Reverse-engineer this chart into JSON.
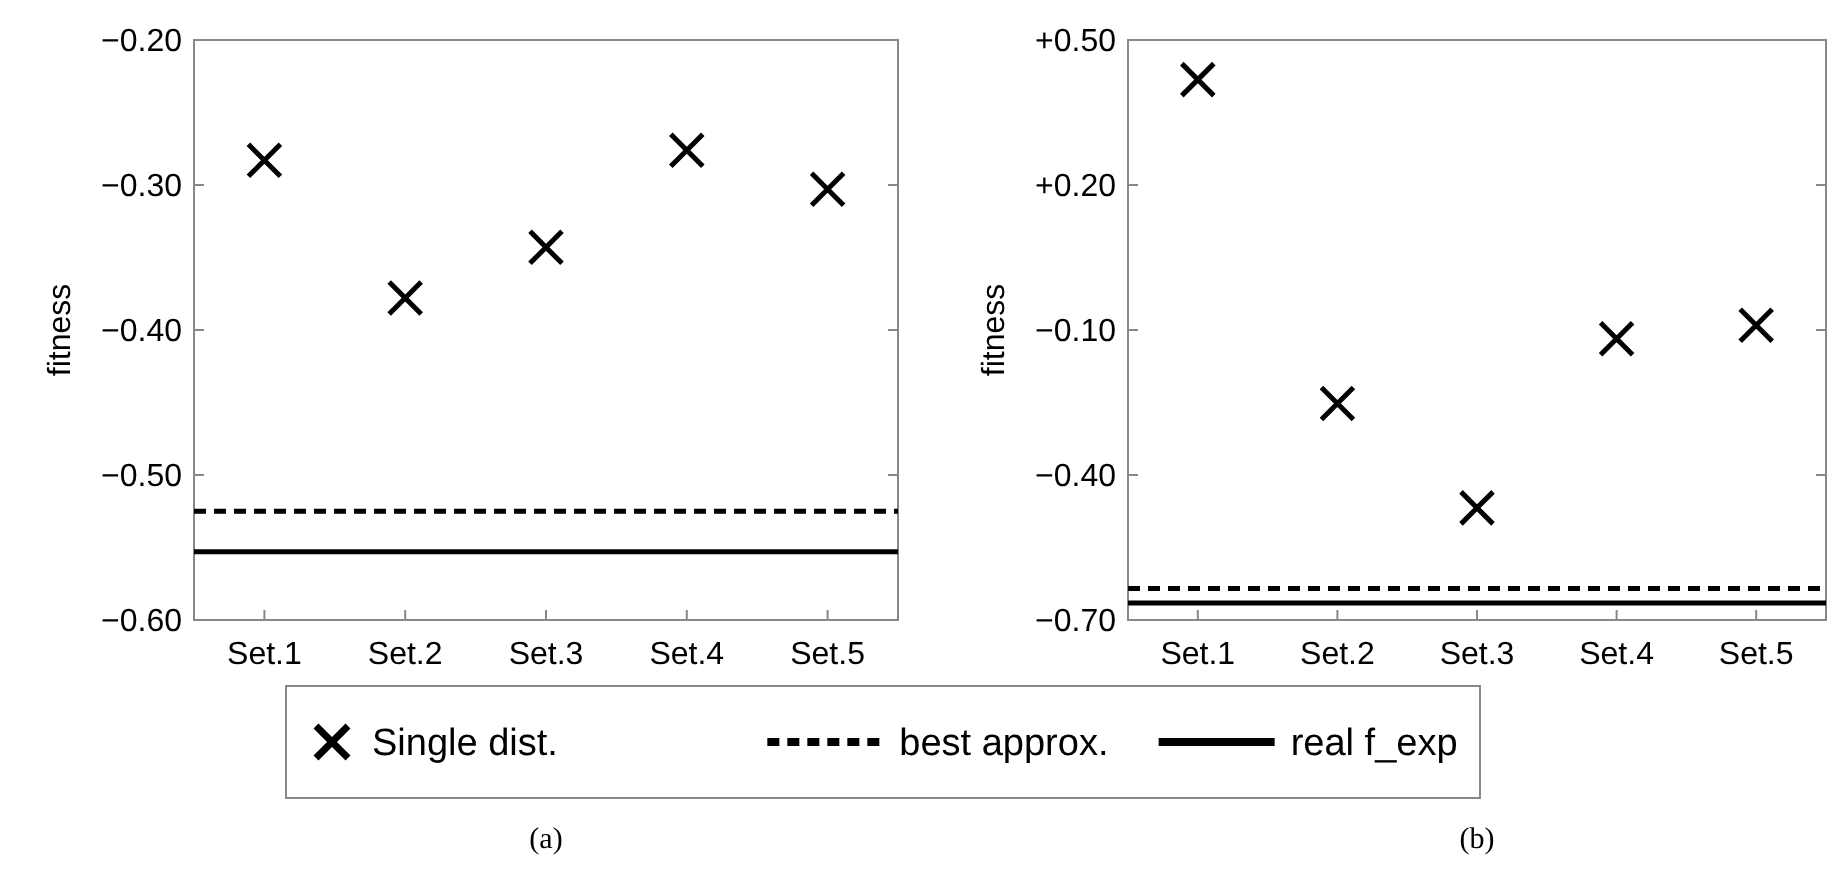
{
  "chart_data": [
    {
      "type": "scatter",
      "categories": [
        "Set.1",
        "Set.2",
        "Set.3",
        "Set.4",
        "Set.5"
      ],
      "ylabel": "fitness",
      "ylim": [
        -0.6,
        -0.2
      ],
      "yticks": [
        {
          "value": -0.6,
          "label": "−0.60"
        },
        {
          "value": -0.5,
          "label": "−0.50"
        },
        {
          "value": -0.4,
          "label": "−0.40"
        },
        {
          "value": -0.3,
          "label": "−0.30"
        },
        {
          "value": -0.2,
          "label": "−0.20"
        }
      ],
      "marker": "cross",
      "legend": "bottom",
      "grid": false,
      "series": [
        {
          "name": "Single dist.",
          "color": "#000000",
          "values": [
            -0.283,
            -0.378,
            -0.343,
            -0.276,
            -0.303
          ]
        }
      ],
      "ref_lines": [
        {
          "axis": "y",
          "value": -0.525,
          "label": "best approx.",
          "line_style": "dashed",
          "color": "#000000"
        },
        {
          "axis": "y",
          "value": -0.553,
          "label": "real f_exp",
          "line_style": "solid",
          "color": "#000000"
        }
      ],
      "annotations": [
        "(a)"
      ]
    },
    {
      "type": "scatter",
      "categories": [
        "Set.1",
        "Set.2",
        "Set.3",
        "Set.4",
        "Set.5"
      ],
      "ylabel": "fitness",
      "ylim": [
        -0.7,
        0.5
      ],
      "yticks": [
        {
          "value": -0.7,
          "label": "−0.70"
        },
        {
          "value": -0.4,
          "label": "−0.40"
        },
        {
          "value": -0.1,
          "label": "−0.10"
        },
        {
          "value": 0.2,
          "label": "+0.20"
        },
        {
          "value": 0.5,
          "label": "+0.50"
        }
      ],
      "marker": "cross",
      "grid": false,
      "series": [
        {
          "color": "#000000",
          "values": [
            0.418,
            -0.252,
            -0.468,
            -0.118,
            -0.09
          ]
        }
      ],
      "ref_lines": [
        {
          "axis": "y",
          "value": -0.635,
          "line_style": "dashed",
          "color": "#000000"
        },
        {
          "axis": "y",
          "value": -0.665,
          "line_style": "solid",
          "color": "#000000"
        }
      ],
      "annotations": [
        "(b)"
      ]
    }
  ]
}
